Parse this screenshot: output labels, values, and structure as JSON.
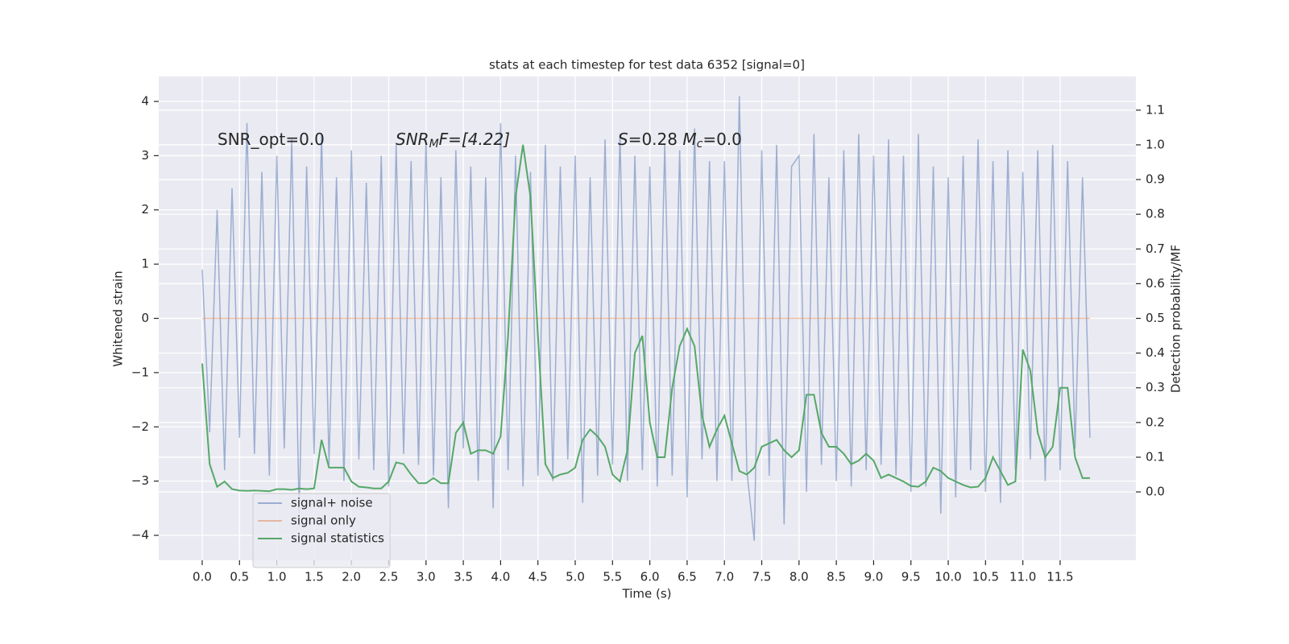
{
  "chart_data": {
    "type": "line",
    "title": "stats at each timestep for test data 6352 [signal=0]",
    "xlabel": "Time (s)",
    "ylabel": "Whitened strain",
    "y2label": "Detection probability/MF",
    "annotations": [
      [
        {
          "text": "SNR_opt=0.0",
          "style": "normal"
        }
      ],
      [
        {
          "text": "SNR",
          "style": "italic"
        },
        {
          "text": "M",
          "style": "sub"
        },
        {
          "text": "F=[4.22]",
          "style": "italic"
        }
      ],
      [
        {
          "text": "S",
          "style": "italic"
        },
        {
          "text": "=0.28   ",
          "style": "normal"
        },
        {
          "text": "M",
          "style": "italic"
        },
        {
          "text": "c",
          "style": "sub"
        },
        {
          "text": "=0.0",
          "style": "normal"
        }
      ]
    ],
    "x": [
      0.0,
      0.1,
      0.2,
      0.3,
      0.4,
      0.5,
      0.6,
      0.7,
      0.8,
      0.9,
      1.0,
      1.1,
      1.2,
      1.3,
      1.4,
      1.5,
      1.6,
      1.7,
      1.8,
      1.9,
      2.0,
      2.1,
      2.2,
      2.3,
      2.4,
      2.5,
      2.6,
      2.7,
      2.8,
      2.9,
      3.0,
      3.1,
      3.2,
      3.3,
      3.4,
      3.5,
      3.6,
      3.7,
      3.8,
      3.9,
      4.0,
      4.1,
      4.2,
      4.3,
      4.4,
      4.5,
      4.6,
      4.7,
      4.8,
      4.9,
      5.0,
      5.1,
      5.2,
      5.3,
      5.4,
      5.5,
      5.6,
      5.7,
      5.8,
      5.9,
      6.0,
      6.1,
      6.2,
      6.3,
      6.4,
      6.5,
      6.6,
      6.7,
      6.8,
      6.9,
      7.0,
      7.1,
      7.2,
      7.3,
      7.4,
      7.5,
      7.6,
      7.7,
      7.8,
      7.9,
      8.0,
      8.1,
      8.2,
      8.3,
      8.4,
      8.5,
      8.6,
      8.7,
      8.8,
      8.9,
      9.0,
      9.1,
      9.2,
      9.3,
      9.4,
      9.5,
      9.6,
      9.7,
      9.8,
      9.9,
      10.0,
      10.1,
      10.2,
      10.3,
      10.4,
      10.5,
      10.6,
      10.7,
      10.8,
      10.9,
      11.0,
      11.1,
      11.2,
      11.3,
      11.4,
      11.5,
      11.6,
      11.7,
      11.8,
      11.9
    ],
    "series": [
      {
        "name": "signal+ noise",
        "color": "#4c72b0",
        "alpha": 0.5,
        "values": [
          0.9,
          -2.1,
          2.0,
          -2.8,
          2.4,
          -2.2,
          3.6,
          -2.5,
          2.7,
          -2.9,
          3.0,
          -2.4,
          3.3,
          -3.6,
          2.8,
          -2.5,
          3.4,
          -2.7,
          2.6,
          -3.0,
          3.1,
          -2.6,
          2.5,
          -2.8,
          3.0,
          -3.1,
          3.2,
          -2.5,
          2.9,
          -2.7,
          3.3,
          -2.9,
          2.6,
          -3.5,
          3.1,
          -2.4,
          2.8,
          -3.0,
          2.6,
          -3.5,
          3.6,
          -2.8,
          3.0,
          -3.1,
          2.7,
          -2.9,
          3.2,
          -3.0,
          2.8,
          -2.6,
          3.0,
          -3.4,
          2.6,
          -2.9,
          3.3,
          -2.7,
          3.4,
          -3.0,
          3.0,
          -2.8,
          2.8,
          -3.1,
          3.2,
          -2.9,
          3.1,
          -3.3,
          3.5,
          -2.6,
          2.9,
          -3.0,
          2.9,
          -3.0,
          4.1,
          -2.8,
          -4.1,
          3.1,
          -2.9,
          3.2,
          -3.8,
          2.8,
          3.0,
          -3.2,
          3.4,
          -2.7,
          2.6,
          -3.0,
          3.1,
          -3.1,
          3.4,
          -2.8,
          3.0,
          -2.7,
          3.3,
          -2.9,
          3.0,
          -3.2,
          3.4,
          -3.1,
          2.8,
          -3.6,
          2.6,
          -3.3,
          3.0,
          -2.8,
          3.3,
          -3.2,
          2.9,
          -3.4,
          3.1,
          -2.8,
          2.7,
          -2.6,
          3.1,
          -3.0,
          3.2,
          -2.8,
          2.9,
          -2.4,
          2.6,
          -2.2
        ]
      },
      {
        "name": "signal only",
        "color": "#dd8452",
        "alpha": 0.5,
        "values": [
          0,
          0,
          0,
          0,
          0,
          0,
          0,
          0,
          0,
          0,
          0,
          0,
          0,
          0,
          0,
          0,
          0,
          0,
          0,
          0,
          0,
          0,
          0,
          0,
          0,
          0,
          0,
          0,
          0,
          0,
          0,
          0,
          0,
          0,
          0,
          0,
          0,
          0,
          0,
          0,
          0,
          0,
          0,
          0,
          0,
          0,
          0,
          0,
          0,
          0,
          0,
          0,
          0,
          0,
          0,
          0,
          0,
          0,
          0,
          0,
          0,
          0,
          0,
          0,
          0,
          0,
          0,
          0,
          0,
          0,
          0,
          0,
          0,
          0,
          0,
          0,
          0,
          0,
          0,
          0,
          0,
          0,
          0,
          0,
          0,
          0,
          0,
          0,
          0,
          0,
          0,
          0,
          0,
          0,
          0,
          0,
          0,
          0,
          0,
          0,
          0,
          0,
          0,
          0,
          0,
          0,
          0,
          0,
          0,
          0,
          0,
          0,
          0,
          0,
          0,
          0,
          0,
          0,
          0,
          0
        ]
      },
      {
        "name": "signal statistics",
        "color": "#55a868",
        "alpha": 1,
        "axis": "y2",
        "values": [
          0.37,
          0.08,
          0.015,
          0.03,
          0.008,
          0.004,
          0.003,
          0.004,
          0.003,
          0.002,
          0.008,
          0.008,
          0.006,
          0.01,
          0.008,
          0.01,
          0.15,
          0.07,
          0.07,
          0.07,
          0.03,
          0.015,
          0.013,
          0.01,
          0.01,
          0.03,
          0.085,
          0.08,
          0.05,
          0.025,
          0.025,
          0.04,
          0.025,
          0.025,
          0.17,
          0.2,
          0.11,
          0.12,
          0.12,
          0.11,
          0.16,
          0.45,
          0.85,
          1.0,
          0.85,
          0.45,
          0.08,
          0.04,
          0.05,
          0.055,
          0.07,
          0.15,
          0.18,
          0.16,
          0.13,
          0.05,
          0.03,
          0.12,
          0.4,
          0.45,
          0.2,
          0.1,
          0.1,
          0.3,
          0.42,
          0.47,
          0.42,
          0.22,
          0.13,
          0.18,
          0.22,
          0.14,
          0.06,
          0.05,
          0.07,
          0.13,
          0.14,
          0.15,
          0.12,
          0.1,
          0.12,
          0.28,
          0.28,
          0.17,
          0.13,
          0.13,
          0.11,
          0.08,
          0.09,
          0.11,
          0.09,
          0.04,
          0.05,
          0.04,
          0.03,
          0.017,
          0.015,
          0.03,
          0.07,
          0.06,
          0.04,
          0.03,
          0.02,
          0.013,
          0.015,
          0.04,
          0.1,
          0.06,
          0.02,
          0.03,
          0.41,
          0.35,
          0.17,
          0.1,
          0.13,
          0.3,
          0.3,
          0.1,
          0.04,
          0.04
        ]
      }
    ],
    "xlim": [
      -0.583,
      12.516
    ],
    "xticks": [
      {
        "value": 0,
        "label": "0.0"
      },
      0.5,
      {
        "value": 1,
        "label": "1.0"
      },
      1.5,
      {
        "value": 2,
        "label": "2.0"
      },
      2.5,
      {
        "value": 3,
        "label": "3.0"
      },
      3.5,
      {
        "value": 4,
        "label": "4.0"
      },
      4.5,
      {
        "value": 5,
        "label": "5.0"
      },
      5.5,
      {
        "value": 6,
        "label": "6.0"
      },
      6.5,
      {
        "value": 7,
        "label": "7.0"
      },
      7.5,
      {
        "value": 8,
        "label": "8.0"
      },
      8.5,
      {
        "value": 9,
        "label": "9.0"
      },
      9.5,
      {
        "value": 10,
        "label": "10.0"
      },
      10.5,
      {
        "value": 11,
        "label": "11.0"
      },
      11.5
    ],
    "ylim": [
      -4.46,
      4.46
    ],
    "yticks": [
      {
        "value": -4,
        "label": "−4"
      },
      {
        "value": -3,
        "label": "−3"
      },
      {
        "value": -2,
        "label": "−2"
      },
      {
        "value": -1,
        "label": "−1"
      },
      0,
      1,
      2,
      3,
      4
    ],
    "y2lim": [
      -0.197,
      1.197
    ],
    "y2ticks": [
      {
        "value": 0,
        "label": "0.0"
      },
      0.1,
      0.2,
      0.3,
      0.4,
      0.5,
      0.6,
      0.7,
      0.8,
      0.9,
      {
        "value": 1,
        "label": "1.0"
      },
      1.1
    ],
    "grid": true,
    "legend": "lower left",
    "background": "#eaeaf2"
  }
}
